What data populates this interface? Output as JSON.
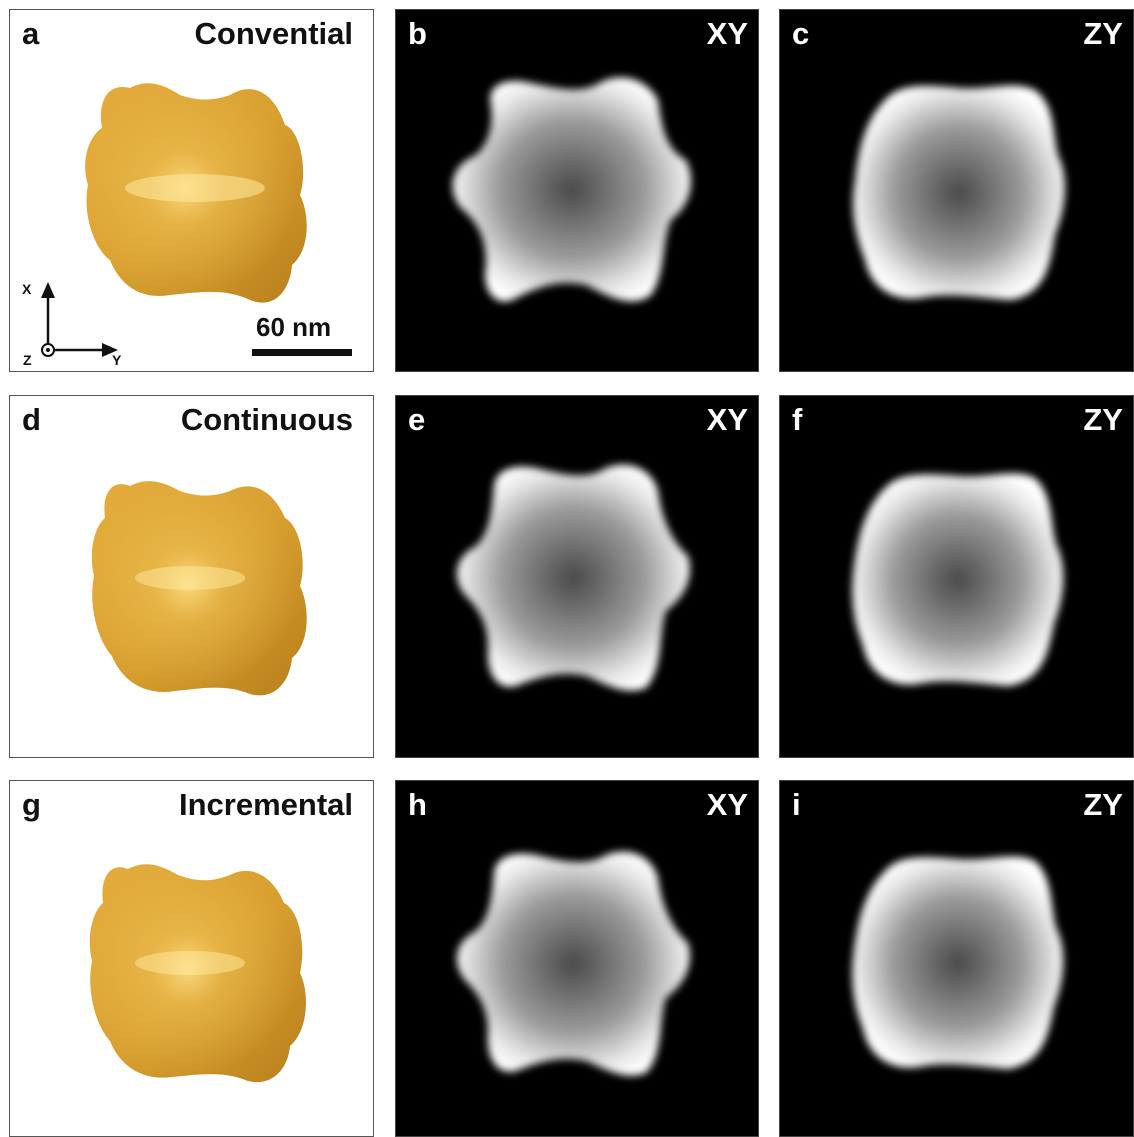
{
  "panels": {
    "a": {
      "letter": "a",
      "method": "Convential"
    },
    "b": {
      "letter": "b",
      "plane": "XY"
    },
    "c": {
      "letter": "c",
      "plane": "ZY"
    },
    "d": {
      "letter": "d",
      "method": "Continuous"
    },
    "e": {
      "letter": "e",
      "plane": "XY"
    },
    "f": {
      "letter": "f",
      "plane": "ZY"
    },
    "g": {
      "letter": "g",
      "method": "Incremental"
    },
    "h": {
      "letter": "h",
      "plane": "XY"
    },
    "i": {
      "letter": "i",
      "plane": "ZY"
    }
  },
  "axes": {
    "x": "X",
    "y": "Y",
    "z": "Z"
  },
  "scale_bar": {
    "label": "60 nm"
  },
  "colors": {
    "surface": "#e0a830",
    "slice_bg": "#000000",
    "slice_fg": "#ffffff"
  }
}
